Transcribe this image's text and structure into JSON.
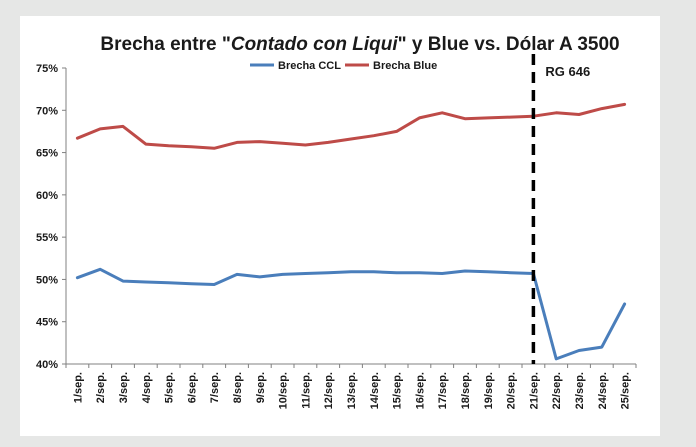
{
  "colors": {
    "ccl": "#4a7ebb",
    "blue": "#be4b48",
    "axis": "#808080",
    "annotation_line": "#000000"
  },
  "chart_data": {
    "type": "line",
    "title_parts": [
      "Brecha entre \"",
      "Contado con Liqui",
      "\" y Blue vs. Dólar A 3500"
    ],
    "title": "Brecha entre \"Contado con Liqui\" y Blue vs. Dólar A 3500",
    "xlabel": "",
    "ylabel": "",
    "ylim": [
      0.4,
      0.75
    ],
    "yticks": [
      0.4,
      0.45,
      0.5,
      0.55,
      0.6,
      0.65,
      0.7,
      0.75
    ],
    "ytick_labels": [
      "40%",
      "45%",
      "50%",
      "55%",
      "60%",
      "65%",
      "70%",
      "75%"
    ],
    "grid": false,
    "legend_position": "top",
    "categories": [
      "1/sep.",
      "2/sep.",
      "3/sep.",
      "4/sep.",
      "5/sep.",
      "6/sep.",
      "7/sep.",
      "8/sep.",
      "9/sep.",
      "10/sep.",
      "11/sep.",
      "12/sep.",
      "13/sep.",
      "14/sep.",
      "15/sep.",
      "16/sep.",
      "17/sep.",
      "18/sep.",
      "19/sep.",
      "20/sep.",
      "21/sep.",
      "22/sep.",
      "23/sep.",
      "24/sep.",
      "25/sep."
    ],
    "series": [
      {
        "name": "Brecha CCL",
        "color": "#4a7ebb",
        "values": [
          0.502,
          0.512,
          0.498,
          0.497,
          0.496,
          0.495,
          0.494,
          0.506,
          0.503,
          0.506,
          0.507,
          0.508,
          0.509,
          0.509,
          0.508,
          0.508,
          0.507,
          0.51,
          0.509,
          0.508,
          0.507,
          0.406,
          0.416,
          0.42,
          0.471
        ]
      },
      {
        "name": "Brecha Blue",
        "color": "#be4b48",
        "values": [
          0.667,
          0.678,
          0.681,
          0.66,
          0.658,
          0.657,
          0.655,
          0.662,
          0.663,
          0.661,
          0.659,
          0.662,
          0.666,
          0.67,
          0.675,
          0.691,
          0.697,
          0.69,
          0.691,
          0.692,
          0.693,
          0.697,
          0.695,
          0.702,
          0.707
        ]
      }
    ],
    "annotation": {
      "label": "RG 646",
      "category": "21/sep.",
      "style": "dashed vertical line"
    }
  }
}
